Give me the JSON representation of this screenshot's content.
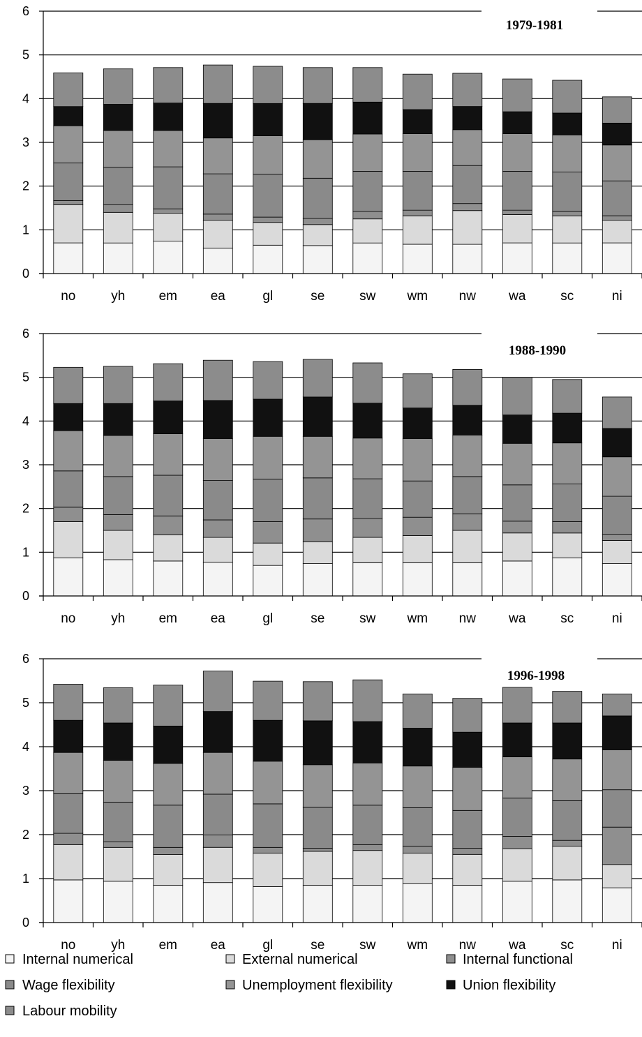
{
  "chart_data": {
    "type": "bar",
    "stacked": true,
    "categories": [
      "no",
      "yh",
      "em",
      "ea",
      "gl",
      "se",
      "sw",
      "wm",
      "nw",
      "wa",
      "sc",
      "ni"
    ],
    "ylim": [
      0,
      6
    ],
    "yticks": [
      "0",
      "1",
      "2",
      "3",
      "4",
      "5",
      "6"
    ],
    "grid": true,
    "legend_position": "bottom",
    "series_names": [
      "Internal numerical",
      "External numerical",
      "Internal functional",
      "Wage flexibility",
      "Unemployment flexibility",
      "Union flexibility",
      "Labour mobility"
    ],
    "series_colors": [
      "#f4f4f4",
      "#dadada",
      "#8f8f8f",
      "#8a8a8a",
      "#949494",
      "#111111",
      "#8c8c8c"
    ],
    "panels": [
      {
        "title": "1979-1981",
        "series": [
          {
            "name": "Internal numerical",
            "values": [
              0.7,
              0.7,
              0.74,
              0.58,
              0.65,
              0.64,
              0.7,
              0.67,
              0.67,
              0.7,
              0.7,
              0.7
            ]
          },
          {
            "name": "External numerical",
            "values": [
              0.87,
              0.7,
              0.64,
              0.64,
              0.52,
              0.48,
              0.55,
              0.65,
              0.77,
              0.65,
              0.62,
              0.52
            ]
          },
          {
            "name": "Internal functional",
            "values": [
              0.1,
              0.17,
              0.1,
              0.14,
              0.12,
              0.14,
              0.17,
              0.13,
              0.16,
              0.1,
              0.1,
              0.1
            ]
          },
          {
            "name": "Wage flexibility",
            "values": [
              0.86,
              0.86,
              0.96,
              0.92,
              0.98,
              0.92,
              0.92,
              0.89,
              0.87,
              0.89,
              0.9,
              0.8
            ]
          },
          {
            "name": "Unemployment flexibility",
            "values": [
              0.85,
              0.84,
              0.83,
              0.82,
              0.88,
              0.88,
              0.85,
              0.86,
              0.82,
              0.86,
              0.85,
              0.82
            ]
          },
          {
            "name": "Union flexibility",
            "values": [
              0.44,
              0.6,
              0.63,
              0.79,
              0.74,
              0.83,
              0.73,
              0.55,
              0.53,
              0.5,
              0.5,
              0.5
            ]
          },
          {
            "name": "Labour mobility",
            "values": [
              0.77,
              0.81,
              0.81,
              0.88,
              0.85,
              0.82,
              0.79,
              0.81,
              0.76,
              0.75,
              0.75,
              0.6
            ]
          }
        ]
      },
      {
        "title": "1988-1990",
        "series": [
          {
            "name": "Internal numerical",
            "values": [
              0.87,
              0.83,
              0.8,
              0.77,
              0.7,
              0.74,
              0.76,
              0.76,
              0.76,
              0.8,
              0.87,
              0.74
            ]
          },
          {
            "name": "External numerical",
            "values": [
              0.83,
              0.67,
              0.6,
              0.57,
              0.51,
              0.5,
              0.58,
              0.62,
              0.74,
              0.64,
              0.57,
              0.53
            ]
          },
          {
            "name": "Internal functional",
            "values": [
              0.33,
              0.36,
              0.43,
              0.4,
              0.49,
              0.52,
              0.43,
              0.42,
              0.38,
              0.27,
              0.26,
              0.14
            ]
          },
          {
            "name": "Wage flexibility",
            "values": [
              0.83,
              0.87,
              0.93,
              0.9,
              0.97,
              0.94,
              0.91,
              0.83,
              0.85,
              0.83,
              0.86,
              0.87
            ]
          },
          {
            "name": "Unemployment flexibility",
            "values": [
              0.92,
              0.94,
              0.95,
              0.96,
              0.98,
              0.95,
              0.93,
              0.97,
              0.95,
              0.95,
              0.94,
              0.9
            ]
          },
          {
            "name": "Union flexibility",
            "values": [
              0.62,
              0.73,
              0.75,
              0.87,
              0.85,
              0.9,
              0.8,
              0.7,
              0.68,
              0.65,
              0.68,
              0.65
            ]
          },
          {
            "name": "Labour mobility",
            "values": [
              0.83,
              0.85,
              0.85,
              0.92,
              0.86,
              0.86,
              0.92,
              0.78,
              0.82,
              0.86,
              0.77,
              0.72
            ]
          }
        ]
      },
      {
        "title": "1996-1998",
        "series": [
          {
            "name": "Internal numerical",
            "values": [
              0.97,
              0.94,
              0.85,
              0.91,
              0.82,
              0.85,
              0.85,
              0.88,
              0.85,
              0.94,
              0.97,
              0.79
            ]
          },
          {
            "name": "External numerical",
            "values": [
              0.8,
              0.77,
              0.7,
              0.8,
              0.76,
              0.77,
              0.79,
              0.7,
              0.7,
              0.74,
              0.77,
              0.53
            ]
          },
          {
            "name": "Internal functional",
            "values": [
              0.26,
              0.13,
              0.16,
              0.28,
              0.13,
              0.07,
              0.13,
              0.16,
              0.14,
              0.28,
              0.13,
              0.85
            ]
          },
          {
            "name": "Wage flexibility",
            "values": [
              0.9,
              0.9,
              0.96,
              0.93,
              0.99,
              0.93,
              0.9,
              0.87,
              0.86,
              0.87,
              0.9,
              0.85
            ]
          },
          {
            "name": "Unemployment flexibility",
            "values": [
              0.94,
              0.95,
              0.95,
              0.95,
              0.97,
              0.97,
              0.96,
              0.95,
              0.98,
              0.94,
              0.95,
              0.91
            ]
          },
          {
            "name": "Union flexibility",
            "values": [
              0.73,
              0.85,
              0.85,
              0.93,
              0.93,
              1.0,
              0.94,
              0.86,
              0.8,
              0.77,
              0.82,
              0.77
            ]
          },
          {
            "name": "Labour mobility",
            "values": [
              0.82,
              0.8,
              0.93,
              0.92,
              0.89,
              0.89,
              0.95,
              0.78,
              0.77,
              0.81,
              0.72,
              0.5
            ]
          }
        ]
      }
    ]
  }
}
